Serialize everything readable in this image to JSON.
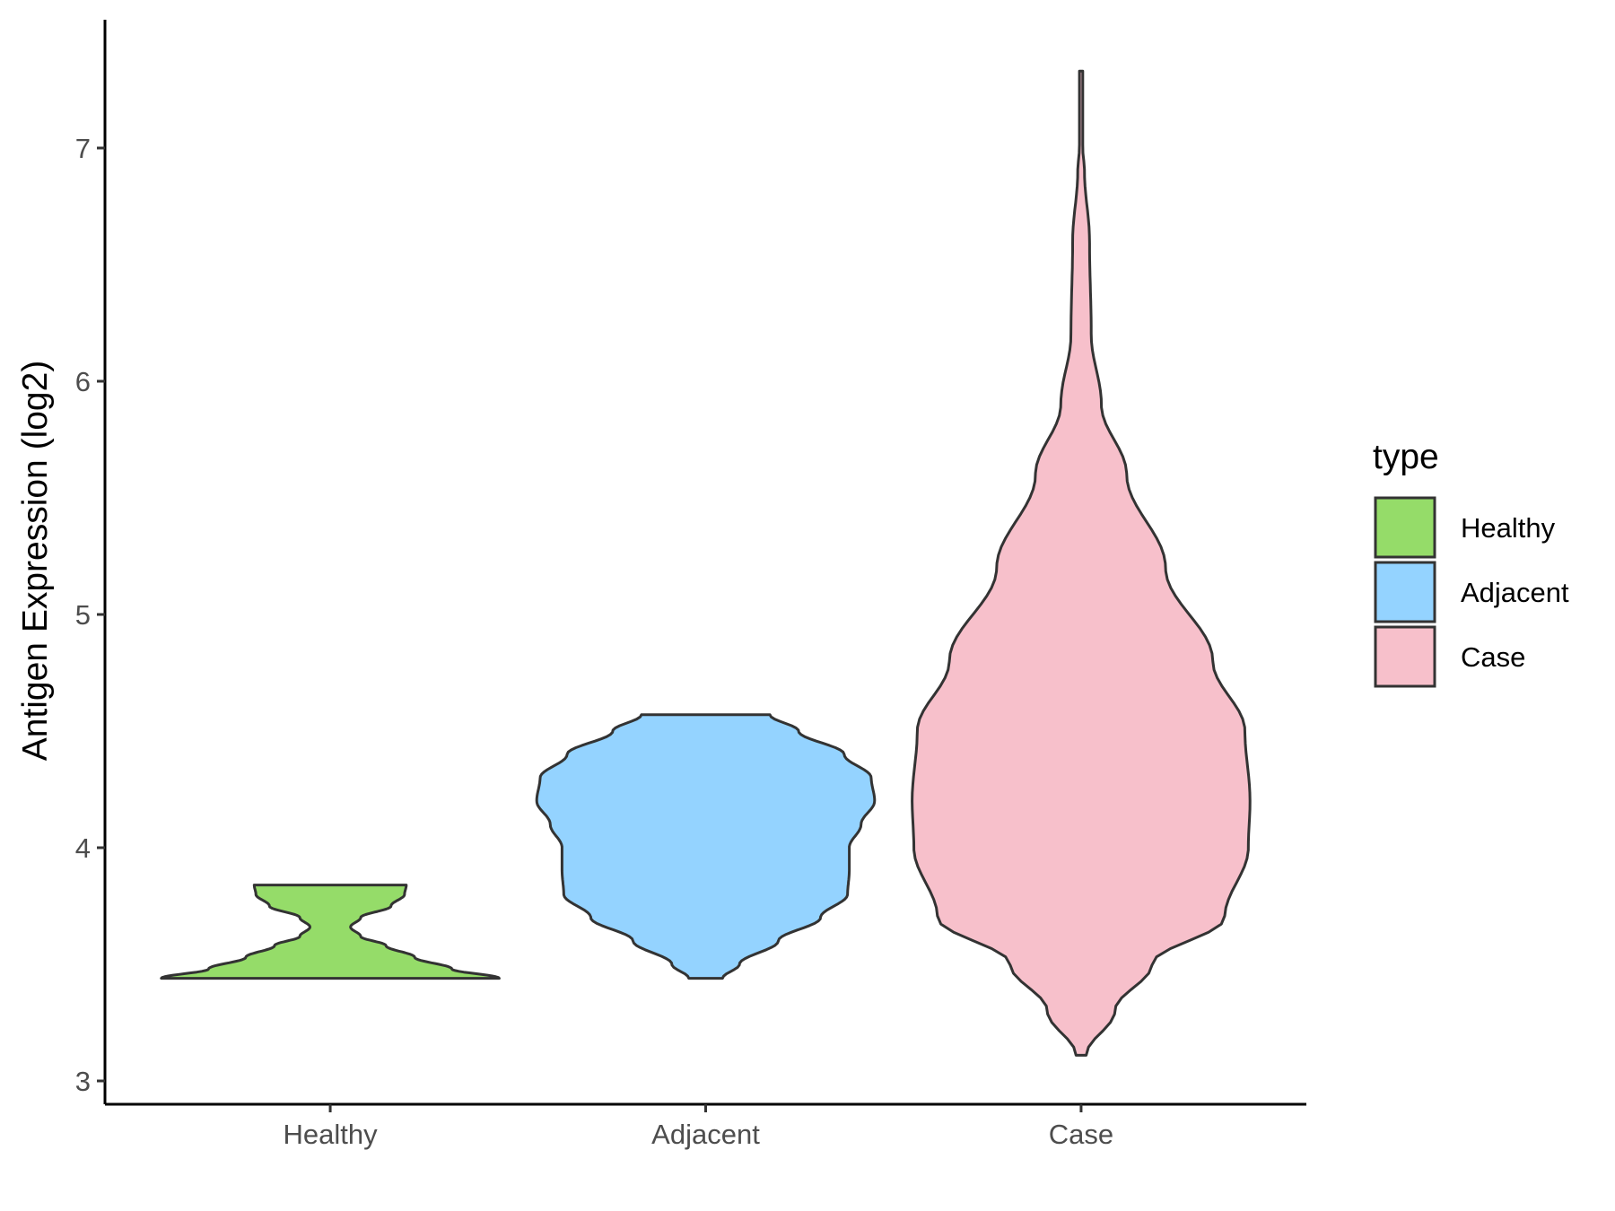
{
  "chart_data": {
    "type": "violin",
    "title": "",
    "xlabel": "",
    "ylabel": "Antigen Expression (log2)",
    "ylim": [
      2.9,
      7.55
    ],
    "yticks": [
      3,
      4,
      5,
      6,
      7
    ],
    "categories": [
      "Healthy",
      "Adjacent",
      "Case"
    ],
    "grid": false,
    "legend": {
      "title": "type",
      "position": "right",
      "items": [
        {
          "label": "Healthy",
          "color": "#95DC69"
        },
        {
          "label": "Adjacent",
          "color": "#94D3FF"
        },
        {
          "label": "Case",
          "color": "#F7C0CB"
        }
      ]
    },
    "series": [
      {
        "category": "Healthy",
        "color": "#95DC69",
        "min": 3.44,
        "max": 3.84,
        "density": [
          [
            3.44,
            1.0
          ],
          [
            3.48,
            0.72
          ],
          [
            3.53,
            0.5
          ],
          [
            3.58,
            0.33
          ],
          [
            3.62,
            0.18
          ],
          [
            3.66,
            0.12
          ],
          [
            3.7,
            0.18
          ],
          [
            3.75,
            0.36
          ],
          [
            3.8,
            0.44
          ],
          [
            3.84,
            0.45
          ]
        ]
      },
      {
        "category": "Adjacent",
        "color": "#94D3FF",
        "min": 3.44,
        "max": 4.57,
        "density": [
          [
            3.44,
            0.1
          ],
          [
            3.5,
            0.2
          ],
          [
            3.6,
            0.43
          ],
          [
            3.7,
            0.68
          ],
          [
            3.8,
            0.84
          ],
          [
            3.9,
            0.85
          ],
          [
            4.0,
            0.85
          ],
          [
            4.1,
            0.92
          ],
          [
            4.2,
            1.0
          ],
          [
            4.3,
            0.98
          ],
          [
            4.4,
            0.82
          ],
          [
            4.5,
            0.55
          ],
          [
            4.57,
            0.38
          ]
        ]
      },
      {
        "category": "Case",
        "color": "#F7C0CB",
        "min": 3.11,
        "max": 7.33,
        "density": [
          [
            3.11,
            0.03
          ],
          [
            3.3,
            0.2
          ],
          [
            3.5,
            0.42
          ],
          [
            3.7,
            0.85
          ],
          [
            4.0,
            0.99
          ],
          [
            4.2,
            1.0
          ],
          [
            4.5,
            0.97
          ],
          [
            4.8,
            0.78
          ],
          [
            5.2,
            0.5
          ],
          [
            5.6,
            0.27
          ],
          [
            5.9,
            0.12
          ],
          [
            6.2,
            0.06
          ],
          [
            6.6,
            0.05
          ],
          [
            6.9,
            0.02
          ],
          [
            7.0,
            0.01
          ],
          [
            7.33,
            0.01
          ]
        ]
      }
    ]
  }
}
